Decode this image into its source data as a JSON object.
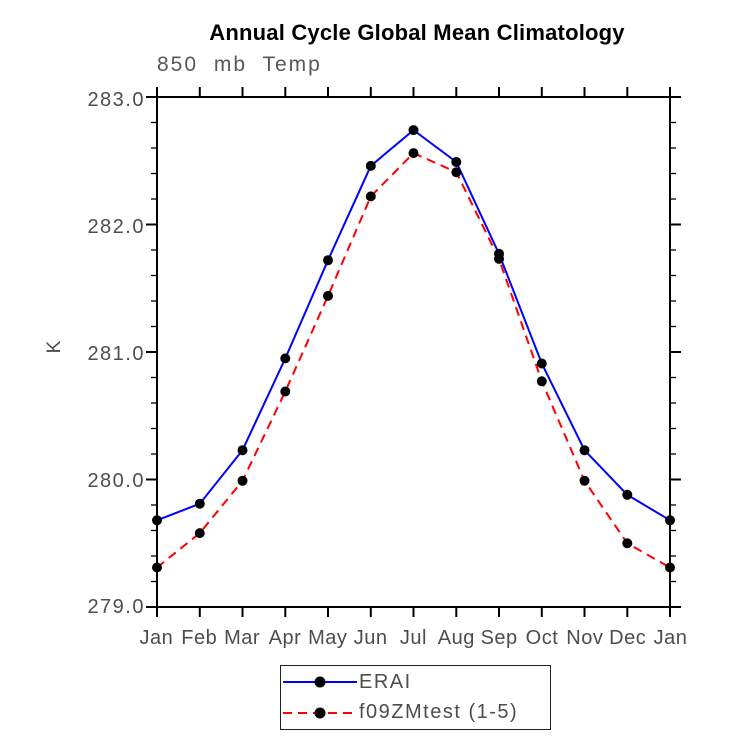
{
  "title": "Annual Cycle Global Mean Climatology",
  "subtitle": "850 mb Temp",
  "chart_data": {
    "type": "line",
    "title": "Annual Cycle Global Mean Climatology",
    "subtitle": "850 mb Temp",
    "xlabel": "",
    "ylabel": "K",
    "categories": [
      "Jan",
      "Feb",
      "Mar",
      "Apr",
      "May",
      "Jun",
      "Jul",
      "Aug",
      "Sep",
      "Oct",
      "Nov",
      "Dec",
      "Jan"
    ],
    "series": [
      {
        "name": "ERAI",
        "color": "#0000ff",
        "dash": "solid",
        "marker": "circle",
        "marker_color": "#000000",
        "values": [
          279.68,
          279.81,
          280.23,
          280.95,
          281.72,
          282.46,
          282.74,
          282.49,
          281.77,
          280.91,
          280.23,
          279.88,
          279.68
        ]
      },
      {
        "name": "f09ZMtest (1-5)",
        "color": "#ff0000",
        "dash": "dashed",
        "marker": "circle",
        "marker_color": "#000000",
        "values": [
          279.31,
          279.58,
          279.99,
          280.69,
          281.44,
          282.22,
          282.56,
          282.41,
          281.73,
          280.77,
          279.99,
          279.5,
          279.31
        ]
      }
    ],
    "ylim": [
      279.0,
      283.0
    ],
    "y_major_step": 1.0,
    "y_minor_step": 0.2,
    "y_tick_labels": [
      "283.0",
      "282.0",
      "281.0",
      "280.0",
      "279.0"
    ],
    "grid": false,
    "legend_position": "bottom-center"
  },
  "colors": {
    "axis": "#000000",
    "series_erai": "#0000ff",
    "series_f09zmtest": "#ff0000",
    "marker": "#000000",
    "muted_text": "#4d4d4d",
    "title_text": "#000000",
    "background": "#ffffff"
  }
}
